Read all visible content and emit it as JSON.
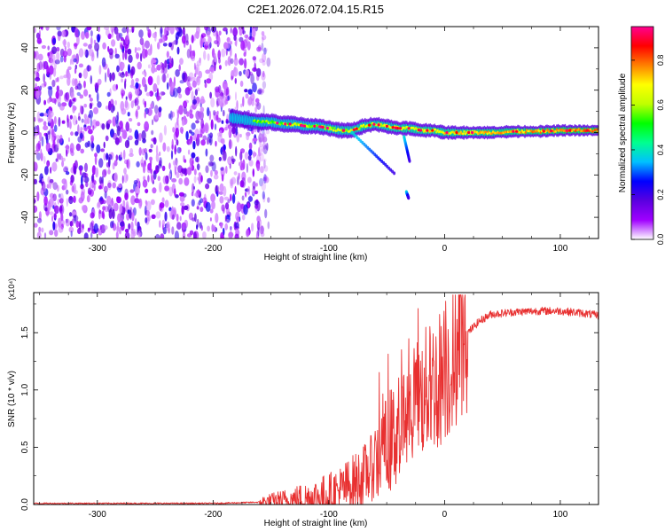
{
  "title": "C2E1.2026.072.04.15.R15",
  "chart_data": [
    {
      "type": "heatmap",
      "xlabel": "Height of straight line (km)",
      "ylabel": "Frequency (Hz)",
      "xlim": [
        -355,
        133
      ],
      "ylim": [
        -50,
        50
      ],
      "x_ticks": [
        -300,
        -200,
        -100,
        0,
        100
      ],
      "x_tick_labels": [
        "-300",
        "-200",
        "-100",
        "0",
        "100"
      ],
      "y_ticks": [
        -40,
        -20,
        0,
        20,
        40
      ],
      "y_tick_labels": [
        "-40",
        "-20",
        "0",
        "20",
        "40"
      ],
      "colorbar": {
        "label": "Normalized spectral amplitude",
        "range": [
          0,
          0.95
        ],
        "ticks": [
          0,
          0.2,
          0.4,
          0.6,
          0.8
        ],
        "tick_labels": [
          "0.0",
          "0.2",
          "0.4",
          "0.6",
          "0.8"
        ],
        "colors": [
          "#ffffff",
          "#a000ff",
          "#5a00e0",
          "#0000ff",
          "#00c0ff",
          "#00ff90",
          "#00ff00",
          "#c0ff00",
          "#ffff00",
          "#ff8000",
          "#ff0000",
          "#ff0090"
        ]
      },
      "noise_region_x": [
        -355,
        -152
      ],
      "ridge": {
        "x": [
          -185,
          -160,
          -150,
          -140,
          -130,
          -120,
          -110,
          -100,
          -90,
          -80,
          -70,
          -60,
          -50,
          -40,
          -30,
          -20,
          -10,
          0,
          20,
          40,
          60,
          80,
          100,
          120,
          133
        ],
        "y": [
          7,
          5,
          5,
          4,
          4,
          3,
          3,
          2,
          1,
          1,
          3,
          4,
          3,
          2,
          2,
          1,
          1,
          0,
          0,
          0,
          0.5,
          0.5,
          1,
          1,
          1
        ]
      },
      "grid": false,
      "legend": "none"
    },
    {
      "type": "line",
      "xlabel": "Height of straight line (km)",
      "ylabel": "SNR (10 * v/v)",
      "y_multiplier": "(x10⁴)",
      "xlim": [
        -355,
        133
      ],
      "ylim": [
        0,
        1.85
      ],
      "x_ticks": [
        -300,
        -200,
        -100,
        0,
        100
      ],
      "x_tick_labels": [
        "-300",
        "-200",
        "-100",
        "0",
        "100"
      ],
      "y_ticks": [
        0,
        0.5,
        1.0,
        1.5
      ],
      "y_tick_labels": [
        "0.0",
        "0.5",
        "1.0",
        "1.5"
      ],
      "color": "#e83030",
      "series_envelope": {
        "x": [
          -355,
          -200,
          -160,
          -140,
          -120,
          -100,
          -90,
          -80,
          -70,
          -60,
          -50,
          -40,
          -30,
          -20,
          -10,
          0,
          10,
          20,
          30,
          40,
          60,
          80,
          100,
          120,
          133
        ],
        "y": [
          0.01,
          0.01,
          0.02,
          0.03,
          0.05,
          0.08,
          0.12,
          0.18,
          0.25,
          0.35,
          0.5,
          0.65,
          0.8,
          0.95,
          1.05,
          1.15,
          1.3,
          1.5,
          1.6,
          1.66,
          1.68,
          1.69,
          1.69,
          1.67,
          1.65
        ]
      },
      "grid": false,
      "legend": "none"
    }
  ]
}
